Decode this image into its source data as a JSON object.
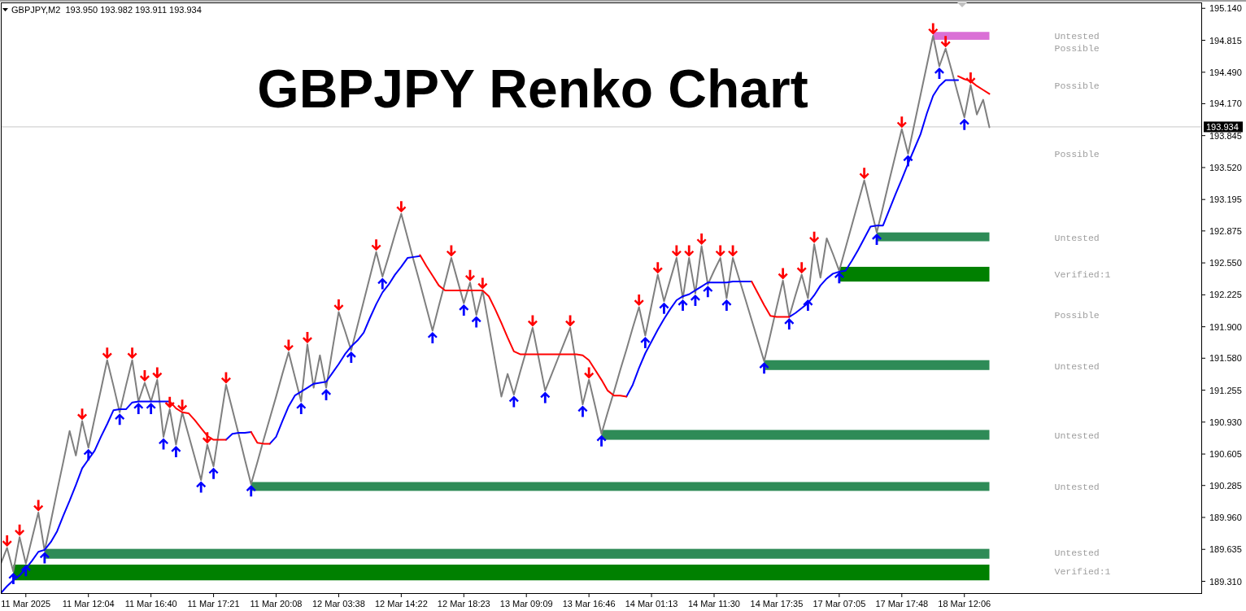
{
  "chart_data": {
    "type": "line",
    "title": "GBPJPY Renko Chart",
    "subtitle": "GBPJPY,M2  193.950 193.982 193.911 193.934",
    "annotations": [
      "Untested",
      "Possible",
      "Possible",
      "Possible",
      "Untested",
      "Verified:1",
      "Possible",
      "Untested",
      "Untested",
      "Untested",
      "Untested",
      "Verified:1"
    ],
    "categories": [
      null,
      null,
      null,
      null,
      "11 Mar 2025",
      null,
      null,
      null,
      null,
      null,
      null,
      null,
      null,
      null,
      "11 Mar 12:04",
      null,
      null,
      null,
      null,
      null,
      null,
      null,
      null,
      null,
      "11 Mar 16:40",
      null,
      null,
      null,
      null,
      null,
      null,
      null,
      null,
      null,
      "11 Mar 17:21",
      null,
      null,
      null,
      null,
      null,
      null,
      null,
      null,
      null,
      "11 Mar 20:08",
      null,
      null,
      null,
      null,
      null,
      null,
      null,
      null,
      null,
      "12 Mar 03:38",
      null,
      null,
      null,
      null,
      null,
      null,
      null,
      null,
      null,
      "12 Mar 14:22",
      null,
      null,
      null,
      null,
      null,
      null,
      null,
      null,
      null,
      "12 Mar 18:23",
      null,
      null,
      null,
      null,
      null,
      null,
      null,
      null,
      null,
      "13 Mar 09:09",
      null,
      null,
      null,
      null,
      null,
      null,
      null,
      null,
      null,
      "13 Mar 16:46",
      null,
      null,
      null,
      null,
      null,
      null,
      null,
      null,
      null,
      "14 Mar 01:13",
      null,
      null,
      null,
      null,
      null,
      null,
      null,
      null,
      null,
      "14 Mar 11:30",
      null,
      null,
      null,
      null,
      null,
      null,
      null,
      null,
      null,
      "14 Mar 17:35",
      null,
      null,
      null,
      null,
      null,
      null,
      null,
      null,
      null,
      "17 Mar 07:05",
      null,
      null,
      null,
      null,
      null,
      null,
      null,
      null,
      null,
      "17 Mar 17:48",
      null,
      null,
      null,
      null,
      null,
      null,
      null,
      null,
      null,
      "18 Mar 12:06",
      null,
      null,
      null,
      null
    ],
    "ylim": [
      189.19,
      195.2
    ],
    "yticks": [
      {
        "value": 189.31,
        "label": "189.310"
      },
      {
        "value": 189.635,
        "label": "189.635"
      },
      {
        "value": 189.96,
        "label": "189.960"
      },
      {
        "value": 190.285,
        "label": "190.285"
      },
      {
        "value": 190.605,
        "label": "190.605"
      },
      {
        "value": 190.93,
        "label": "190.930"
      },
      {
        "value": 191.255,
        "label": "191.255"
      },
      {
        "value": 191.58,
        "label": "191.580"
      },
      {
        "value": 191.9,
        "label": "191.900"
      },
      {
        "value": 192.225,
        "label": "192.225"
      },
      {
        "value": 192.55,
        "label": "192.550"
      },
      {
        "value": 192.875,
        "label": "192.875"
      },
      {
        "value": 193.195,
        "label": "193.195"
      },
      {
        "value": 193.52,
        "label": "193.520"
      },
      {
        "value": 193.845,
        "label": "193.845"
      },
      {
        "value": 194.17,
        "label": "194.170"
      },
      {
        "value": 194.49,
        "label": "194.490"
      },
      {
        "value": 194.815,
        "label": "194.815"
      },
      {
        "value": 195.14,
        "label": "195.140"
      }
    ],
    "ref_lines": [
      {
        "axis": "y",
        "value": 193.934,
        "label": "193.934",
        "color": "#c8c8c8"
      }
    ],
    "bands": [
      {
        "axis": "y",
        "from": 194.82,
        "to": 194.9,
        "color": "#da70d6"
      },
      {
        "axis": "y",
        "from": 192.77,
        "to": 192.86,
        "color": "#2e8b57"
      },
      {
        "axis": "y",
        "from": 192.36,
        "to": 192.51,
        "color": "#008000"
      },
      {
        "axis": "y",
        "from": 191.46,
        "to": 191.56,
        "color": "#2e8b57"
      },
      {
        "axis": "y",
        "from": 190.75,
        "to": 190.85,
        "color": "#2e8b57"
      },
      {
        "axis": "y",
        "from": 190.23,
        "to": 190.32,
        "color": "#2e8b57"
      },
      {
        "axis": "y",
        "from": 189.54,
        "to": 189.64,
        "color": "#2e8b57"
      },
      {
        "axis": "y",
        "from": 189.32,
        "to": 189.48,
        "color": "#008000"
      }
    ],
    "series": [
      {
        "color": "#7f7f7f",
        "values": [
          189.49,
          189.65,
          189.41,
          189.76,
          189.49,
          189.75,
          190.01,
          189.62,
          189.92,
          190.23,
          190.53,
          190.84,
          190.59,
          190.94,
          190.67,
          190.97,
          191.26,
          191.56,
          191.3,
          191.03,
          191.3,
          191.56,
          191.14,
          191.33,
          191.14,
          191.36,
          190.78,
          191.06,
          190.7,
          191.03,
          190.8,
          190.57,
          190.34,
          190.7,
          190.48,
          190.9,
          191.31,
          191.06,
          190.81,
          190.55,
          190.3,
          190.52,
          190.75,
          190.97,
          191.19,
          191.42,
          191.64,
          191.39,
          191.14,
          191.72,
          191.28,
          191.61,
          191.28,
          191.67,
          192.05,
          191.86,
          191.66,
          191.91,
          192.16,
          192.41,
          192.66,
          192.41,
          192.62,
          192.84,
          193.05,
          192.81,
          192.57,
          192.34,
          192.1,
          191.86,
          192.11,
          192.35,
          192.6,
          192.37,
          192.14,
          192.35,
          192.02,
          192.27,
          191.91,
          191.55,
          191.19,
          191.42,
          191.21,
          191.44,
          191.66,
          191.89,
          191.57,
          191.25,
          191.41,
          191.57,
          191.73,
          191.89,
          191.5,
          191.11,
          191.36,
          191.09,
          190.81,
          191.03,
          191.24,
          191.46,
          191.67,
          191.89,
          192.1,
          191.81,
          192.12,
          192.43,
          192.16,
          192.38,
          192.6,
          192.19,
          192.6,
          192.24,
          192.72,
          192.33,
          192.47,
          192.6,
          192.19,
          192.6,
          192.39,
          192.18,
          191.97,
          191.76,
          191.55,
          191.82,
          192.1,
          192.37,
          192.0,
          192.22,
          192.43,
          192.19,
          192.74,
          192.4,
          192.8,
          192.64,
          192.47,
          192.7,
          192.93,
          193.16,
          193.39,
          193.12,
          192.86,
          193.12,
          193.39,
          193.65,
          193.91,
          193.66,
          193.96,
          194.26,
          194.56,
          194.86,
          194.55,
          194.73,
          194.5,
          194.26,
          194.03,
          194.36,
          194.06,
          194.21,
          193.93
        ]
      },
      {
        "color": "#0000ff",
        "values": [
          189.19,
          189.26,
          189.32,
          189.37,
          189.44,
          189.52,
          189.61,
          189.63,
          189.71,
          189.82,
          189.98,
          190.13,
          190.29,
          190.46,
          190.55,
          190.64,
          190.78,
          190.91,
          191.05,
          191.06,
          191.06,
          191.13,
          191.14,
          191.14,
          191.14,
          191.14,
          191.14,
          191.14,
          null,
          null,
          null,
          null,
          null,
          null,
          null,
          null,
          190.75,
          190.81,
          190.82,
          190.82,
          190.83,
          null,
          null,
          190.71,
          190.78,
          190.94,
          191.09,
          191.2,
          191.24,
          191.28,
          191.32,
          191.33,
          191.34,
          191.43,
          191.52,
          191.62,
          191.7,
          191.76,
          191.84,
          191.99,
          192.13,
          192.25,
          192.33,
          192.43,
          192.51,
          192.6,
          192.61,
          192.62,
          null,
          null,
          null,
          null,
          null,
          null,
          null,
          null,
          null,
          null,
          null,
          null,
          null,
          null,
          null,
          null,
          null,
          null,
          null,
          null,
          null,
          null,
          null,
          null,
          null,
          null,
          null,
          null,
          null,
          null,
          null,
          null,
          191.19,
          191.31,
          191.48,
          191.63,
          191.75,
          191.87,
          191.98,
          192.08,
          192.17,
          192.21,
          192.23,
          192.27,
          192.31,
          192.35,
          192.35,
          192.35,
          192.35,
          192.36,
          192.36,
          192.36,
          192.36,
          null,
          null,
          null,
          null,
          null,
          192.0,
          192.04,
          192.09,
          192.14,
          192.22,
          192.32,
          192.39,
          192.44,
          192.46,
          192.47,
          192.57,
          192.68,
          192.8,
          192.92,
          192.93,
          192.93,
          193.09,
          193.25,
          193.4,
          193.56,
          193.71,
          193.86,
          194.07,
          194.25,
          194.35,
          194.41,
          194.41,
          194.41,
          null,
          null,
          null,
          null,
          null
        ]
      },
      {
        "color": "#ff0000",
        "values": [
          null,
          null,
          null,
          null,
          null,
          null,
          null,
          null,
          null,
          null,
          null,
          null,
          null,
          null,
          null,
          null,
          null,
          null,
          null,
          null,
          null,
          null,
          null,
          null,
          null,
          null,
          null,
          191.14,
          191.07,
          191.03,
          191.02,
          190.95,
          190.87,
          190.79,
          190.75,
          190.75,
          190.75,
          null,
          null,
          null,
          190.83,
          190.72,
          190.71,
          190.71,
          null,
          null,
          null,
          null,
          null,
          null,
          null,
          null,
          null,
          null,
          null,
          null,
          null,
          null,
          null,
          null,
          null,
          null,
          null,
          null,
          null,
          null,
          null,
          192.63,
          192.52,
          192.42,
          192.32,
          192.27,
          192.27,
          192.27,
          192.27,
          192.27,
          192.27,
          192.27,
          192.21,
          192.08,
          191.94,
          191.79,
          191.65,
          191.62,
          191.62,
          191.62,
          191.62,
          191.62,
          191.62,
          191.62,
          191.62,
          191.62,
          191.62,
          191.61,
          191.56,
          191.46,
          191.36,
          191.25,
          191.2,
          191.2,
          191.19,
          null,
          null,
          null,
          null,
          null,
          null,
          null,
          null,
          null,
          null,
          null,
          null,
          null,
          null,
          null,
          null,
          null,
          null,
          null,
          192.36,
          192.24,
          192.12,
          192.01,
          192.0,
          192.0,
          192.0,
          null,
          null,
          null,
          null,
          null,
          null,
          null,
          null,
          null,
          null,
          null,
          null,
          null,
          null,
          null,
          null,
          null,
          null,
          null,
          null,
          null,
          null,
          null,
          null,
          null,
          null,
          194.45,
          194.42,
          194.4,
          194.35,
          194.31,
          194.27
        ]
      },
      {
        "type": "scatter",
        "color": "#0000ff",
        "values": [
          null,
          null,
          189.34,
          null,
          189.42,
          null,
          null,
          189.55,
          null,
          null,
          null,
          null,
          null,
          null,
          190.6,
          null,
          null,
          null,
          null,
          190.96,
          null,
          null,
          191.07,
          null,
          191.07,
          null,
          190.71,
          null,
          190.63,
          null,
          null,
          null,
          190.27,
          null,
          190.41,
          null,
          null,
          null,
          null,
          null,
          190.23,
          null,
          null,
          null,
          null,
          null,
          null,
          null,
          191.07,
          null,
          null,
          null,
          191.21,
          null,
          null,
          null,
          191.59,
          null,
          null,
          null,
          null,
          192.34,
          null,
          null,
          null,
          null,
          null,
          null,
          null,
          191.79,
          null,
          null,
          null,
          null,
          192.07,
          null,
          191.95,
          null,
          null,
          null,
          null,
          null,
          191.14,
          null,
          null,
          null,
          null,
          191.18,
          null,
          null,
          null,
          null,
          null,
          191.04,
          null,
          null,
          190.74,
          null,
          null,
          null,
          null,
          null,
          null,
          191.74,
          null,
          null,
          192.09,
          null,
          null,
          192.12,
          null,
          192.17,
          null,
          192.26,
          null,
          null,
          192.12,
          null,
          null,
          null,
          null,
          null,
          191.48,
          null,
          null,
          null,
          191.93,
          null,
          null,
          192.12,
          null,
          null,
          null,
          null,
          192.4,
          null,
          null,
          null,
          null,
          null,
          192.79,
          null,
          null,
          null,
          null,
          193.59,
          null,
          null,
          null,
          null,
          194.48,
          null,
          null,
          null,
          193.96,
          null,
          null,
          null,
          null
        ]
      },
      {
        "type": "scatter",
        "color": "#ff0000",
        "values": [
          null,
          189.72,
          null,
          189.83,
          null,
          null,
          190.08,
          null,
          null,
          null,
          null,
          null,
          null,
          191.01,
          null,
          null,
          null,
          191.63,
          null,
          null,
          null,
          191.63,
          null,
          191.4,
          null,
          191.43,
          null,
          191.13,
          null,
          191.1,
          null,
          null,
          null,
          190.77,
          null,
          null,
          191.38,
          null,
          null,
          null,
          null,
          null,
          null,
          null,
          null,
          null,
          191.71,
          null,
          null,
          191.79,
          null,
          null,
          null,
          null,
          192.12,
          null,
          null,
          null,
          null,
          null,
          192.73,
          null,
          null,
          null,
          193.12,
          null,
          null,
          null,
          null,
          null,
          null,
          null,
          192.67,
          null,
          null,
          192.42,
          null,
          192.34,
          null,
          null,
          null,
          null,
          null,
          null,
          null,
          191.96,
          null,
          null,
          null,
          null,
          null,
          191.96,
          null,
          null,
          191.43,
          null,
          null,
          null,
          null,
          null,
          null,
          null,
          192.17,
          null,
          null,
          192.5,
          null,
          null,
          192.67,
          null,
          192.67,
          null,
          192.79,
          null,
          null,
          192.67,
          null,
          192.67,
          null,
          null,
          null,
          null,
          null,
          null,
          null,
          192.44,
          null,
          null,
          192.5,
          null,
          192.81,
          null,
          null,
          null,
          null,
          null,
          null,
          null,
          193.46,
          null,
          null,
          null,
          null,
          null,
          193.98,
          null,
          null,
          null,
          null,
          194.93,
          null,
          194.8,
          null,
          null,
          null,
          194.43,
          null,
          null,
          null
        ]
      }
    ]
  }
}
